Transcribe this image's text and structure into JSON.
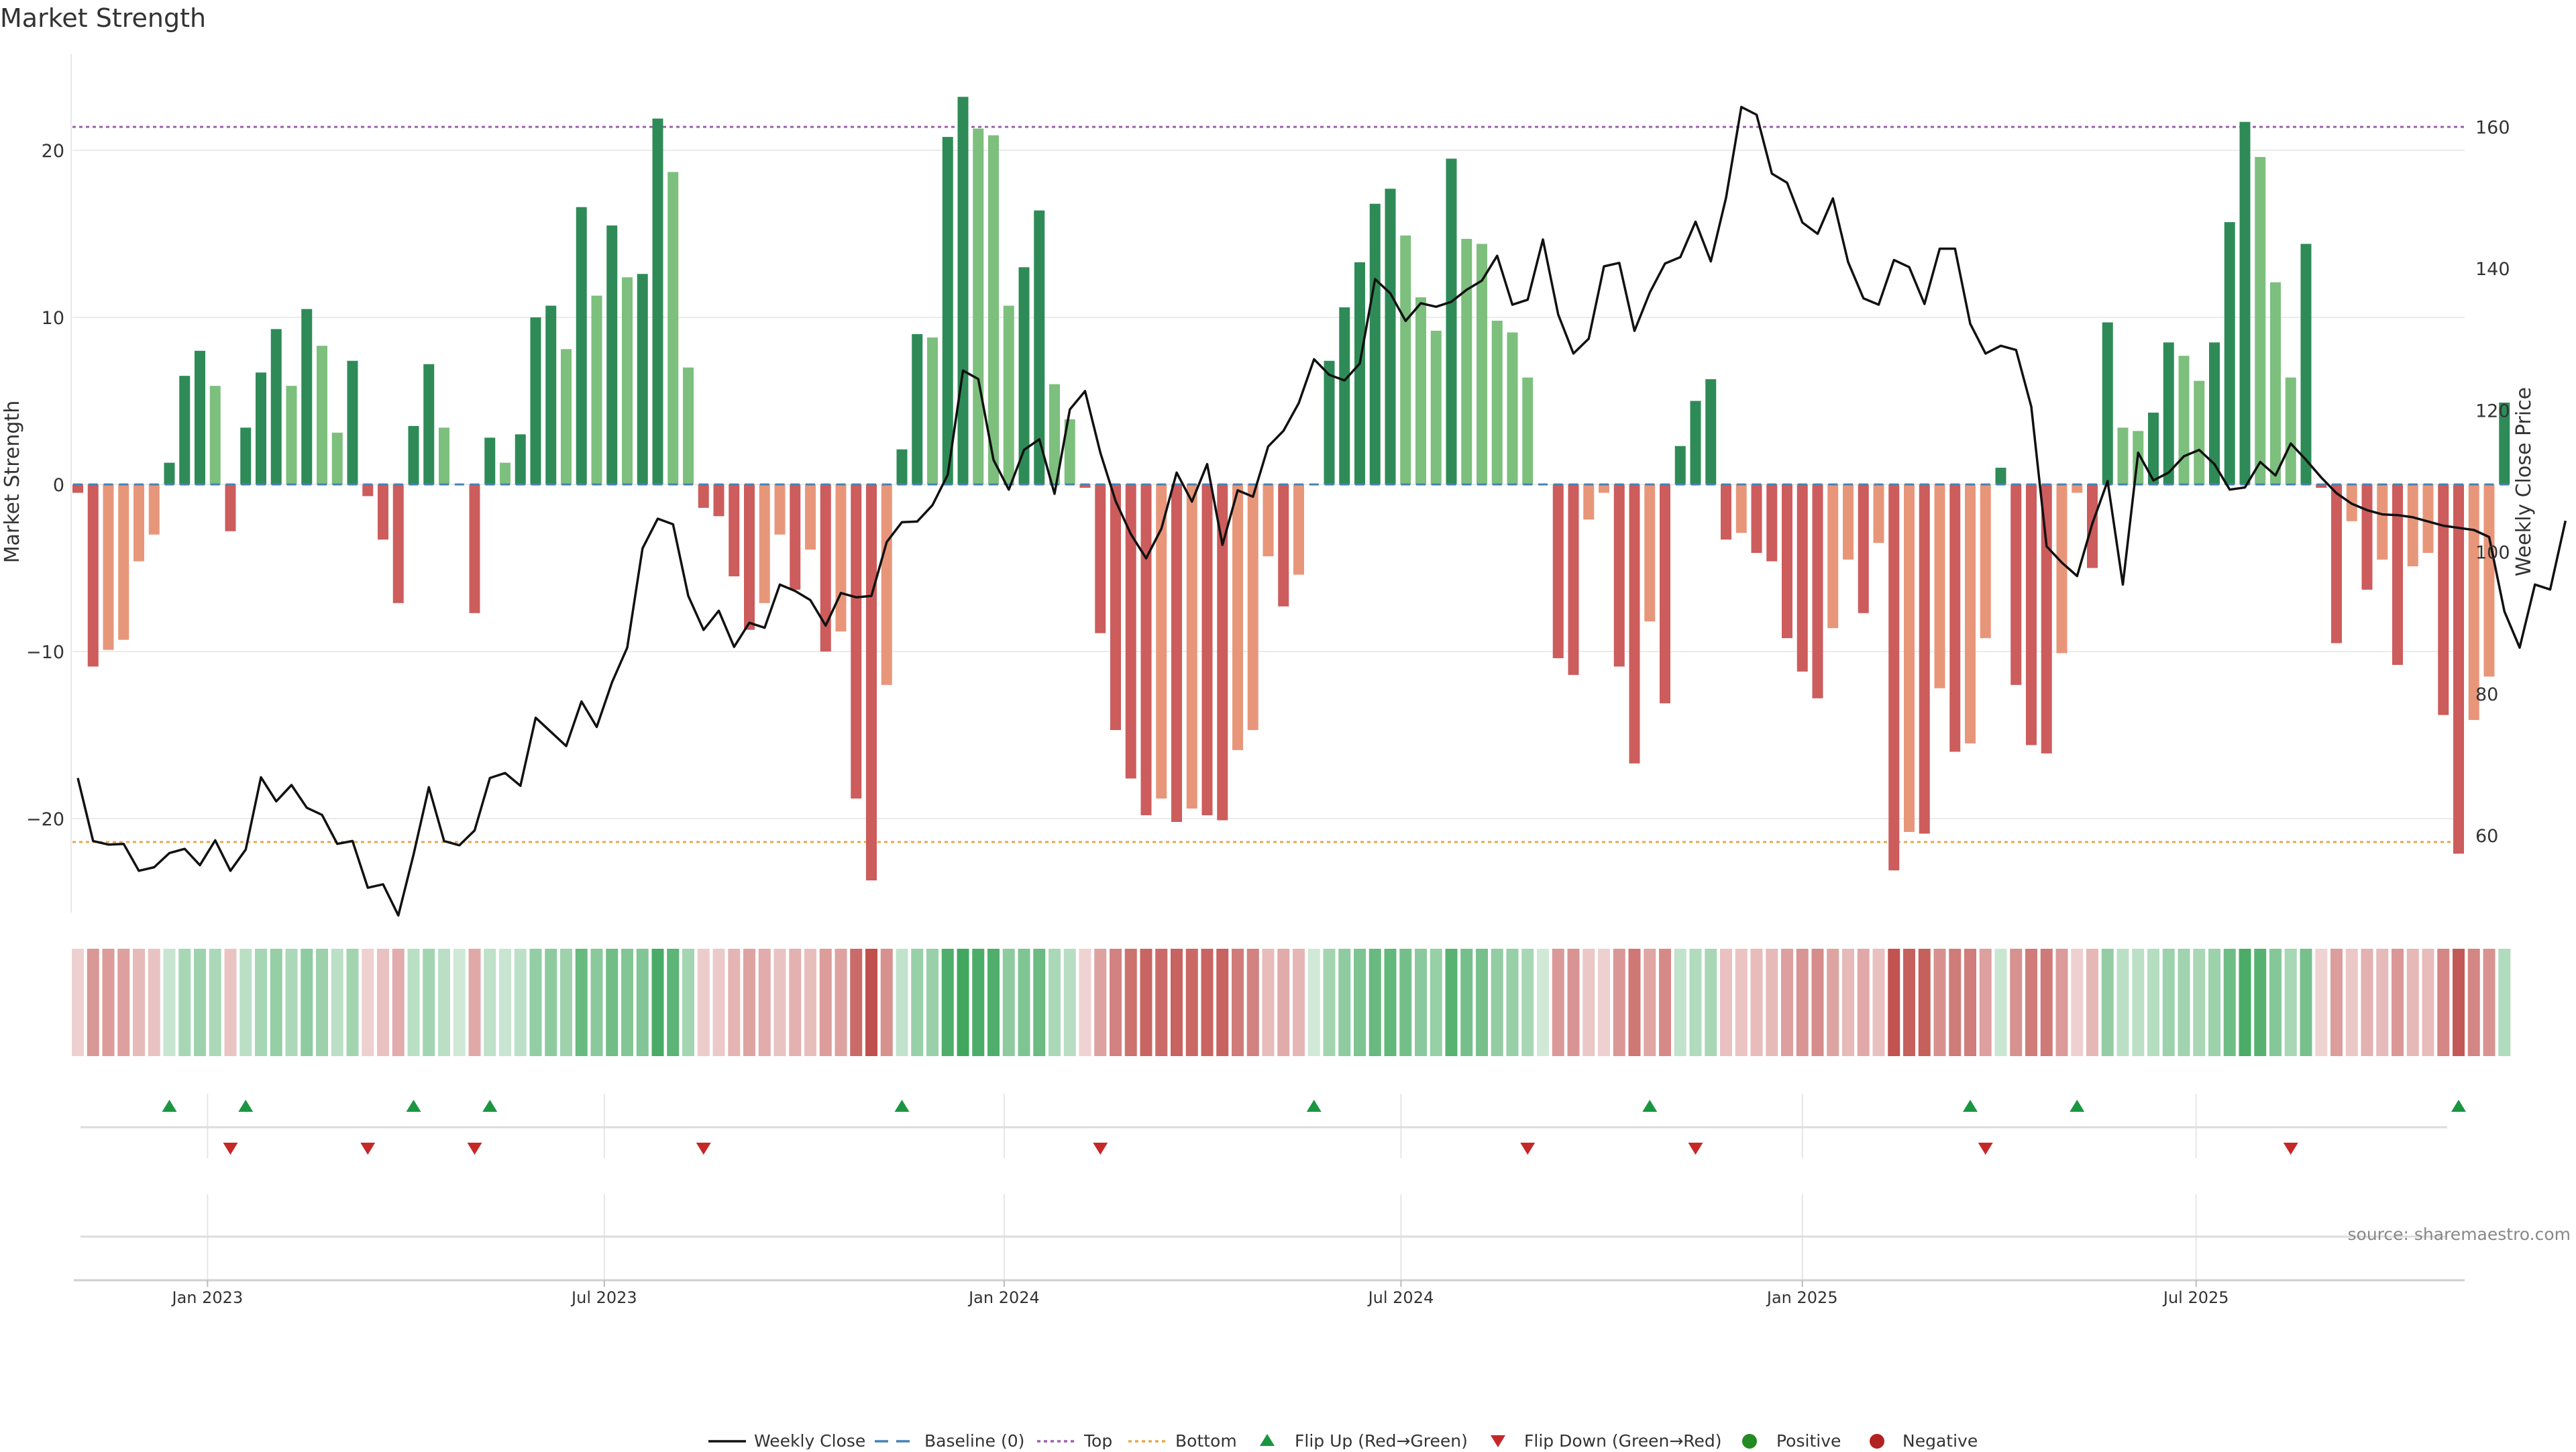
{
  "chart_data": {
    "type": "bar",
    "title": "Market Strength",
    "ylabel": "Market Strength",
    "y2label": "Weekly Close Price",
    "ylim": [
      -25.8,
      25.8
    ],
    "y2lim": [
      49.6,
      172.2
    ],
    "yticks": [
      20,
      10,
      0,
      -10,
      -20
    ],
    "ytick_labels": [
      "20",
      "10",
      "0",
      "−10",
      "−20"
    ],
    "y2ticks": [
      160,
      140,
      120,
      100,
      80,
      60
    ],
    "y2tick_labels": [
      "160",
      "140",
      "120",
      "100",
      "80",
      "60"
    ],
    "x_dates": [
      {
        "label": "Jan 2023",
        "week": 8.5
      },
      {
        "label": "Jul 2023",
        "week": 34.5
      },
      {
        "label": "Jan 2024",
        "week": 60.7
      },
      {
        "label": "Jul 2024",
        "week": 86.7
      },
      {
        "label": "Jan 2025",
        "week": 113.0
      },
      {
        "label": "Jul 2025",
        "week": 138.8
      }
    ],
    "top_threshold": 21.4,
    "bottom_threshold": -21.4,
    "strength": [
      -0.5,
      -10.9,
      -9.9,
      -9.3,
      -4.6,
      -3.0,
      1.3,
      6.5,
      8.0,
      5.9,
      -2.8,
      3.4,
      6.7,
      9.3,
      5.9,
      10.5,
      8.3,
      3.1,
      7.4,
      -0.7,
      -3.3,
      -7.1,
      3.5,
      7.2,
      3.4,
      0,
      -7.7,
      2.8,
      1.3,
      3.0,
      10.0,
      10.7,
      8.1,
      16.6,
      11.3,
      15.5,
      12.4,
      12.6,
      21.9,
      18.7,
      7.0,
      -1.4,
      -1.9,
      -5.5,
      -8.7,
      -7.1,
      -3.0,
      -6.3,
      -3.9,
      -10.0,
      -8.8,
      -18.8,
      -23.7,
      -12.0,
      2.1,
      9.0,
      8.8,
      20.8,
      23.2,
      21.3,
      20.9,
      10.7,
      13.0,
      16.4,
      6.0,
      3.9,
      -0.2,
      -8.9,
      -14.7,
      -17.6,
      -19.8,
      -18.8,
      -20.2,
      -19.4,
      -19.8,
      -20.1,
      -15.9,
      -14.7,
      -4.3,
      -7.3,
      -5.4,
      0,
      7.4,
      10.6,
      13.3,
      16.8,
      17.7,
      14.9,
      11.2,
      9.2,
      19.5,
      14.7,
      14.4,
      9.8,
      9.1,
      6.4,
      0,
      -10.4,
      -11.4,
      -2.1,
      -0.5,
      -10.9,
      -16.7,
      -8.2,
      -13.1,
      2.3,
      5.0,
      6.3,
      -3.3,
      -2.9,
      -4.1,
      -4.6,
      -9.2,
      -11.2,
      -12.8,
      -8.6,
      -4.5,
      -7.7,
      -3.5,
      -23.1,
      -20.8,
      -20.9,
      -12.2,
      -16.0,
      -15.5,
      -9.2,
      1.0,
      -12.0,
      -15.6,
      -16.1,
      -10.1,
      -0.5,
      -5.0,
      9.7,
      3.4,
      3.2,
      4.3,
      8.5,
      7.7,
      6.2,
      8.5,
      15.7,
      21.7,
      19.6,
      12.1,
      6.4,
      14.4,
      -0.2,
      -9.5,
      -2.2,
      -6.3,
      -4.5,
      -10.8,
      -4.9,
      -4.1,
      -13.8,
      -22.1,
      -14.1,
      -11.5,
      4.9
    ],
    "weekly_close": [
      68.1,
      59.2,
      58.7,
      58.8,
      55.0,
      55.5,
      57.5,
      58.1,
      55.8,
      59.3,
      55.0,
      58.0,
      68.2,
      64.8,
      67.1,
      63.9,
      62.9,
      58.8,
      59.2,
      52.6,
      53.1,
      48.7,
      57.3,
      66.8,
      59.2,
      58.6,
      60.7,
      68.1,
      68.8,
      67.0,
      76.6,
      74.6,
      72.6,
      78.9,
      75.3,
      81.6,
      86.5,
      100.5,
      104.7,
      103.9,
      93.8,
      89.0,
      91.7,
      86.6,
      90.0,
      89.3,
      95.4,
      94.5,
      93.2,
      89.6,
      94.2,
      93.6,
      93.8,
      101.4,
      104.2,
      104.3,
      106.6,
      110.9,
      125.6,
      124.4,
      113.0,
      108.8,
      114.4,
      115.9,
      108.2,
      120.1,
      122.7,
      114.0,
      107.2,
      102.5,
      99.1,
      103.3,
      111.2,
      107.1,
      112.4,
      101.0,
      108.7,
      107.8,
      114.9,
      117.1,
      121.0,
      127.2,
      125.0,
      124.2,
      126.6,
      138.5,
      136.5,
      132.6,
      135.1,
      134.6,
      135.3,
      137.0,
      138.3,
      141.8,
      134.9,
      135.6,
      144.1,
      133.5,
      128.0,
      130.1,
      140.3,
      140.8,
      131.2,
      136.6,
      140.7,
      141.6,
      146.6,
      141.0,
      150.0,
      162.8,
      161.7,
      153.4,
      152.1,
      146.5,
      144.9,
      149.9,
      140.9,
      135.8,
      134.9,
      141.2,
      140.2,
      135.0,
      142.8,
      142.8,
      132.2,
      128.0,
      129.1,
      128.5,
      120.5,
      100.8,
      98.5,
      96.6,
      104.0,
      110.0,
      95.4,
      114.0,
      110.1,
      111.2,
      113.5,
      114.4,
      112.4,
      108.8,
      109.1,
      112.7,
      110.8,
      115.3,
      113.0,
      110.5,
      108.3,
      106.8,
      105.9,
      105.3,
      105.2,
      104.9,
      104.3,
      103.7,
      103.4,
      103.1,
      102.1,
      91.6,
      86.5,
      95.4,
      94.7,
      104.4
    ],
    "flip_up_weeks": [
      6,
      11,
      22,
      27,
      54,
      81,
      103,
      124,
      131,
      156
    ],
    "flip_down_weeks": [
      10,
      19,
      26,
      41,
      67,
      95,
      106,
      125,
      145
    ],
    "source": "source: sharemaestro.com",
    "legend": [
      "Weekly Close",
      "Baseline (0)",
      "Top",
      "Bottom",
      "Flip Up (Red→Green)",
      "Flip Down (Green→Red)",
      "Positive",
      "Negative"
    ],
    "colors": {
      "pos_strong": "#2e8b57",
      "pos_light": "#7dbf7d",
      "neg_strong": "#cd5c5c",
      "neg_light": "#e8967a",
      "line": "#111111",
      "baseline": "#4682b4",
      "top": "#a05fb0",
      "bottom": "#e6a94d",
      "flip_up": "#1a9641",
      "flip_down": "#c62828",
      "positive": "#228b22",
      "negative": "#b22222"
    }
  }
}
